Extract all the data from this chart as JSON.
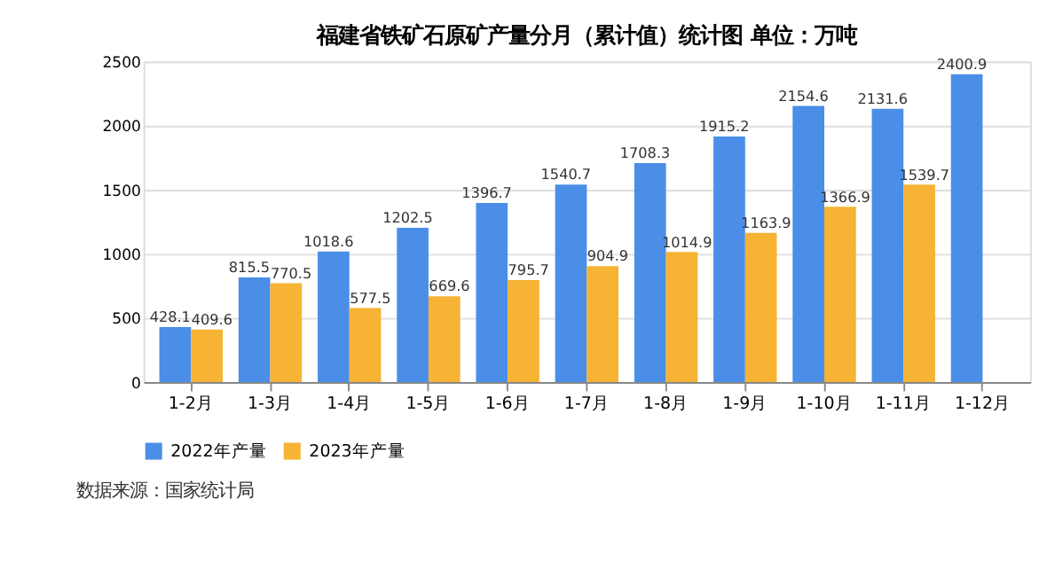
{
  "chart_data": {
    "type": "bar",
    "title": "福建省铁矿石原矿产量分月（累计值）统计图 单位：万吨",
    "categories": [
      "1-2月",
      "1-3月",
      "1-4月",
      "1-5月",
      "1-6月",
      "1-7月",
      "1-8月",
      "1-9月",
      "1-10月",
      "1-11月",
      "1-12月"
    ],
    "series": [
      {
        "name": "2022年产量",
        "color": "#4a8ee8",
        "values": [
          428.1,
          815.5,
          1018.6,
          1202.5,
          1396.7,
          1540.7,
          1708.3,
          1915.2,
          2154.6,
          2131.6,
          2400.9
        ]
      },
      {
        "name": "2023年产量",
        "color": "#f6b334",
        "values": [
          409.6,
          770.5,
          577.5,
          669.6,
          795.7,
          904.9,
          1014.9,
          1163.9,
          1366.9,
          1539.7,
          null
        ]
      }
    ],
    "ylim": [
      0,
      2500
    ],
    "yticks": [
      0,
      500,
      1000,
      1500,
      2000,
      2500
    ],
    "grid": "y",
    "legend": "bottom",
    "data_labels": true,
    "annotations": [
      "数据来源：国家统计局"
    ]
  }
}
